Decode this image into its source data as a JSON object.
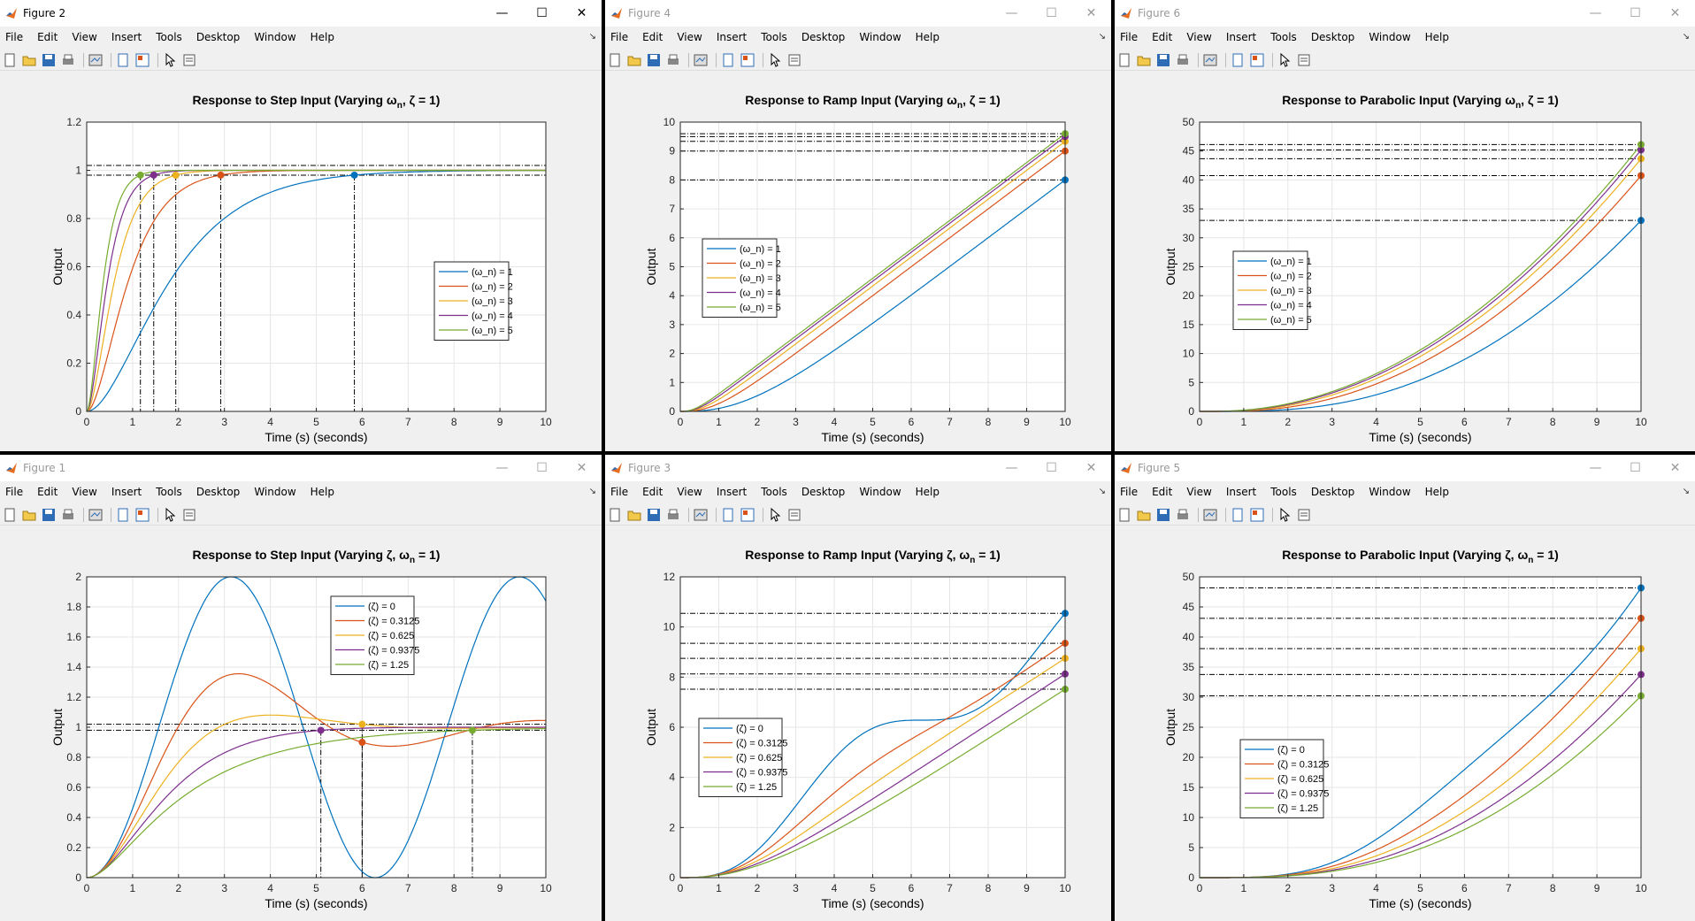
{
  "windows": [
    {
      "id": "fig2",
      "title": "Figure 2",
      "active": true,
      "chart_data": {
        "type": "line",
        "title": "Response to Step Input (Varying ω_n, ζ = 1)",
        "title_main": "Response to Step Input (Varying ω",
        "title_sub": "n",
        "title_tail": ", ζ = 1)",
        "xlabel": "Time (s) (seconds)",
        "ylabel": "Output",
        "xlim": [
          0,
          10
        ],
        "ylim": [
          0,
          1.2
        ],
        "xticks": [
          0,
          1,
          2,
          3,
          4,
          5,
          6,
          7,
          8,
          9,
          10
        ],
        "yticks": [
          0,
          0.2,
          0.4,
          0.6,
          0.8,
          1,
          1.2
        ],
        "ytick_labels": [
          "0",
          "0.2",
          "0.4",
          "0.6",
          "0.8",
          "1",
          "1.2"
        ],
        "grid": true,
        "legend_pos": "right-middle",
        "series": [
          {
            "name": "(ω_n) = 1",
            "wn": 1,
            "marker_x": 5.83
          },
          {
            "name": "(ω_n) = 2",
            "wn": 2,
            "marker_x": 2.92
          },
          {
            "name": "(ω_n) = 3",
            "wn": 3,
            "marker_x": 1.94
          },
          {
            "name": "(ω_n) = 4",
            "wn": 4,
            "marker_x": 1.46
          },
          {
            "name": "(ω_n) = 5",
            "wn": 5,
            "marker_x": 1.17
          }
        ],
        "hlines": [
          1.02,
          0.98
        ]
      }
    },
    {
      "id": "fig4",
      "title": "Figure 4",
      "active": false,
      "chart_data": {
        "type": "line",
        "title": "Response to Ramp Input (Varying ω_n, ζ = 1)",
        "title_main": "Response to Ramp Input (Varying ω",
        "title_sub": "n",
        "title_tail": ", ζ = 1)",
        "xlabel": "Time (s) (seconds)",
        "ylabel": "Output",
        "xlim": [
          0,
          10
        ],
        "ylim": [
          0,
          10
        ],
        "xticks": [
          0,
          1,
          2,
          3,
          4,
          5,
          6,
          7,
          8,
          9,
          10
        ],
        "yticks": [
          0,
          1,
          2,
          3,
          4,
          5,
          6,
          7,
          8,
          9,
          10
        ],
        "ytick_labels": [
          "0",
          "1",
          "2",
          "3",
          "4",
          "5",
          "6",
          "7",
          "8",
          "9",
          "10"
        ],
        "grid": true,
        "legend_pos": "left-middle",
        "series": [
          {
            "name": "(ω_n) = 1",
            "end_value": 8.0
          },
          {
            "name": "(ω_n) = 2",
            "end_value": 9.0
          },
          {
            "name": "(ω_n) = 3",
            "end_value": 9.33
          },
          {
            "name": "(ω_n) = 4",
            "end_value": 9.5
          },
          {
            "name": "(ω_n) = 5",
            "end_value": 9.6
          }
        ]
      }
    },
    {
      "id": "fig6",
      "title": "Figure 6",
      "active": false,
      "chart_data": {
        "type": "line",
        "title": "Response to Parabolic Input (Varying ω_n, ζ = 1)",
        "title_main": "Response to Parabolic Input (Varying ω",
        "title_sub": "n",
        "title_tail": ", ζ = 1)",
        "xlabel": "Time (s) (seconds)",
        "ylabel": "Output",
        "xlim": [
          0,
          10
        ],
        "ylim": [
          0,
          50
        ],
        "xticks": [
          0,
          1,
          2,
          3,
          4,
          5,
          6,
          7,
          8,
          9,
          10
        ],
        "yticks": [
          0,
          5,
          10,
          15,
          20,
          25,
          30,
          35,
          40,
          45,
          50
        ],
        "ytick_labels": [
          "0",
          "5",
          "10",
          "15",
          "20",
          "25",
          "30",
          "35",
          "40",
          "45",
          "50"
        ],
        "grid": true,
        "legend_pos": "left-middle",
        "series": [
          {
            "name": "(ω_n) = 1",
            "end_value": 33.0
          },
          {
            "name": "(ω_n) = 2",
            "end_value": 40.5
          },
          {
            "name": "(ω_n) = 3",
            "end_value": 43.8
          },
          {
            "name": "(ω_n) = 4",
            "end_value": 45.1
          },
          {
            "name": "(ω_n) = 5",
            "end_value": 46.0
          }
        ]
      }
    },
    {
      "id": "fig1",
      "title": "Figure 1",
      "active": false,
      "chart_data": {
        "type": "line",
        "title": "Response to Step Input (Varying ζ, ω_n = 1)",
        "title_main": "Response to Step Input (Varying ζ, ω",
        "title_sub": "n",
        "title_tail": " = 1)",
        "xlabel": "Time (s) (seconds)",
        "ylabel": "Output",
        "xlim": [
          0,
          10
        ],
        "ylim": [
          0,
          2
        ],
        "xticks": [
          0,
          1,
          2,
          3,
          4,
          5,
          6,
          7,
          8,
          9,
          10
        ],
        "yticks": [
          0,
          0.2,
          0.4,
          0.6,
          0.8,
          1,
          1.2,
          1.4,
          1.6,
          1.8,
          2
        ],
        "ytick_labels": [
          "0",
          "0.2",
          "0.4",
          "0.6",
          "0.8",
          "1",
          "1.2",
          "1.4",
          "1.6",
          "1.8",
          "2"
        ],
        "grid": true,
        "legend_pos": "top-middle",
        "series": [
          {
            "name": "(ζ) = 0",
            "zeta": 0
          },
          {
            "name": "(ζ) = 0.3125",
            "zeta": 0.3125,
            "marker_x": 6.0
          },
          {
            "name": "(ζ) = 0.625",
            "zeta": 0.625,
            "marker_x": 6.0
          },
          {
            "name": "(ζ) = 0.9375",
            "zeta": 0.9375,
            "marker_x": 5.1
          },
          {
            "name": "(ζ) = 1.25",
            "zeta": 1.25,
            "marker_x": 8.4
          }
        ],
        "hlines": [
          1.02,
          0.98
        ]
      }
    },
    {
      "id": "fig3",
      "title": "Figure 3",
      "active": false,
      "chart_data": {
        "type": "line",
        "title": "Response to Ramp Input (Varying ζ, ω_n = 1)",
        "title_main": "Response to Ramp Input (Varying ζ, ω",
        "title_sub": "n",
        "title_tail": " = 1)",
        "xlabel": "Time (s) (seconds)",
        "ylabel": "Output",
        "xlim": [
          0,
          10
        ],
        "ylim": [
          0,
          12
        ],
        "xticks": [
          0,
          1,
          2,
          3,
          4,
          5,
          6,
          7,
          8,
          9,
          10
        ],
        "yticks": [
          0,
          2,
          4,
          6,
          8,
          10,
          12
        ],
        "ytick_labels": [
          "0",
          "2",
          "4",
          "6",
          "8",
          "10",
          "12"
        ],
        "grid": true,
        "legend_pos": "left-middle",
        "series": [
          {
            "name": "(ζ) = 0",
            "zeta": 0,
            "end_value": 10.54
          },
          {
            "name": "(ζ) = 0.3125",
            "zeta": 0.3125,
            "end_value": 9.37
          },
          {
            "name": "(ζ) = 0.625",
            "zeta": 0.625,
            "end_value": 8.75
          },
          {
            "name": "(ζ) = 0.9375",
            "zeta": 0.9375,
            "end_value": 8.12
          },
          {
            "name": "(ζ) = 1.25",
            "zeta": 1.25,
            "end_value": 7.5
          }
        ]
      }
    },
    {
      "id": "fig5",
      "title": "Figure 5",
      "active": false,
      "chart_data": {
        "type": "line",
        "title": "Response to Parabolic Input (Varying ζ, ω_n = 1)",
        "title_main": "Response to Parabolic Input (Varying ζ, ω",
        "title_sub": "n",
        "title_tail": " = 1)",
        "xlabel": "Time (s) (seconds)",
        "ylabel": "Output",
        "xlim": [
          0,
          10
        ],
        "ylim": [
          0,
          50
        ],
        "xticks": [
          0,
          1,
          2,
          3,
          4,
          5,
          6,
          7,
          8,
          9,
          10
        ],
        "yticks": [
          0,
          5,
          10,
          15,
          20,
          25,
          30,
          35,
          40,
          45,
          50
        ],
        "ytick_labels": [
          "0",
          "5",
          "10",
          "15",
          "20",
          "25",
          "30",
          "35",
          "40",
          "45",
          "50"
        ],
        "grid": true,
        "legend_pos": "left-lower",
        "series": [
          {
            "name": "(ζ) = 0",
            "end_value": 48.2
          },
          {
            "name": "(ζ) = 0.3125",
            "end_value": 43.2
          },
          {
            "name": "(ζ) = 0.625",
            "end_value": 38.1
          },
          {
            "name": "(ζ) = 0.9375",
            "end_value": 33.7
          },
          {
            "name": "(ζ) = 1.25",
            "end_value": 30.3
          }
        ]
      }
    }
  ],
  "menus": [
    "File",
    "Edit",
    "View",
    "Insert",
    "Tools",
    "Desktop",
    "Window",
    "Help"
  ],
  "window_controls": {
    "minimize": "—",
    "maximize": "☐",
    "close": "✕"
  },
  "colors": [
    "#0072BD",
    "#D95319",
    "#EDB120",
    "#7E2F8E",
    "#77AC30"
  ],
  "toolbar_icons": [
    "new-figure-icon",
    "open-file-icon",
    "save-icon",
    "print-icon",
    "link-plot-icon",
    "hide-toolbox-icon",
    "show-toolbox-icon",
    "pointer-icon",
    "property-inspector-icon"
  ]
}
